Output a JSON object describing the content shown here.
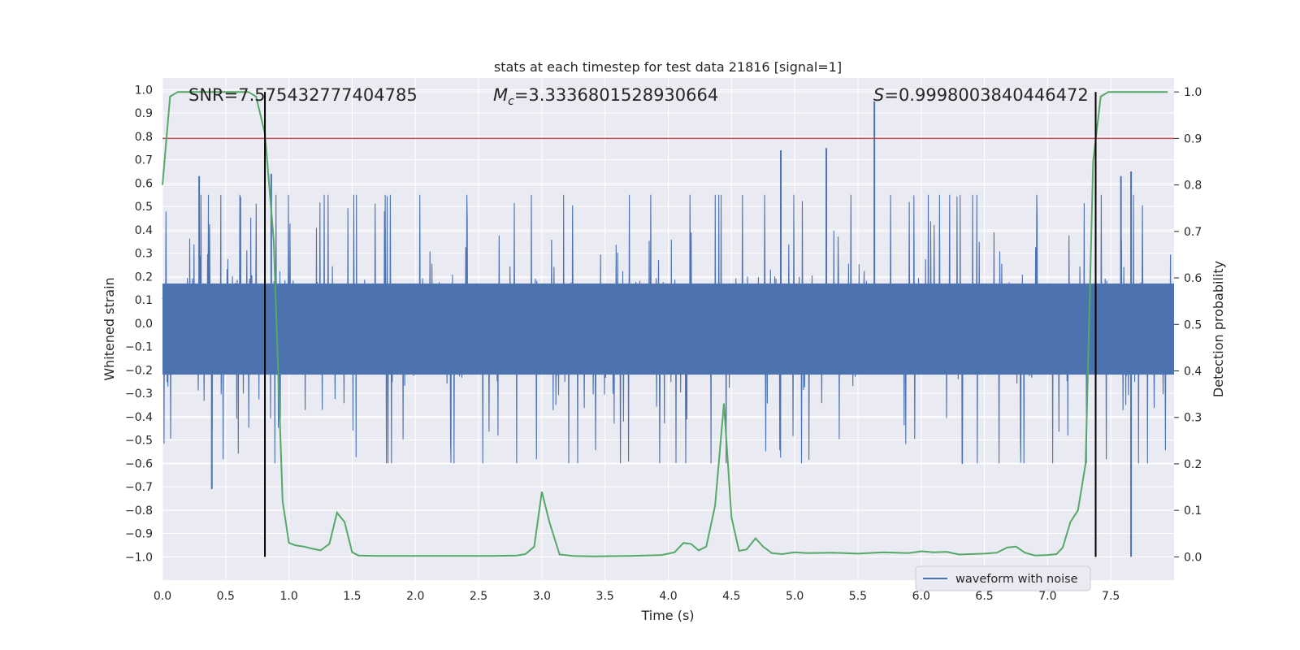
{
  "chart_data": {
    "type": "line",
    "title": "stats at each timestep for test data 21816 [signal=1]",
    "xlabel": "Time (s)",
    "ylabel_left": "Whitened strain",
    "ylabel_right": "Detection probability",
    "xlim": [
      0.0,
      8.0
    ],
    "ylim_left": [
      -1.1,
      1.05
    ],
    "ylim_right": [
      -0.05,
      1.03
    ],
    "x_ticks": [
      "0.0",
      "0.5",
      "1.0",
      "1.5",
      "2.0",
      "2.5",
      "3.0",
      "3.5",
      "4.0",
      "4.5",
      "5.0",
      "5.5",
      "6.0",
      "6.5",
      "7.0",
      "7.5"
    ],
    "y_left_ticks": [
      "1.0",
      "0.9",
      "0.8",
      "0.7",
      "0.6",
      "0.5",
      "0.4",
      "0.3",
      "0.2",
      "0.1",
      "0.0",
      "-0.1",
      "-0.2",
      "-0.3",
      "-0.4",
      "-0.5",
      "-0.6",
      "-0.7",
      "-0.8",
      "-0.9",
      "-1.0"
    ],
    "y_right_ticks": [
      "1.0",
      "0.9",
      "0.8",
      "0.7",
      "0.6",
      "0.5",
      "0.4",
      "0.3",
      "0.2",
      "0.1",
      "0.0"
    ],
    "annotations": {
      "snr": "SNR=7.575432777404785",
      "mc_symbol": "M",
      "mc_sub": "c",
      "mc_value": "=3.3336801528930664",
      "s_symbol": "S",
      "s_value": "=0.9998003840446472"
    },
    "threshold": 0.9,
    "vertical_lines_x": [
      0.81,
      7.38
    ],
    "legend": {
      "placement": "lower-right",
      "label": "waveform with noise"
    },
    "grid": true,
    "colors": {
      "background": "#eaeaf2",
      "grid": "#ffffff",
      "waveform": "#4c72b0",
      "probability": "#55a868",
      "threshold": "#c44e52",
      "marker": "#000000"
    },
    "series": [
      {
        "name": "waveform with noise",
        "axis": "left",
        "kind": "noise-envelope",
        "core_range": [
          -0.22,
          0.17
        ],
        "typical_peak": 0.36,
        "peaks": [
          {
            "x": 0.29,
            "y": 0.63
          },
          {
            "x": 0.39,
            "y": -0.71
          },
          {
            "x": 0.86,
            "y": 0.64
          },
          {
            "x": 4.89,
            "y": 0.74
          },
          {
            "x": 5.25,
            "y": 0.75
          },
          {
            "x": 5.63,
            "y": 0.95
          },
          {
            "x": 7.66,
            "y": -1.0
          },
          {
            "x": 7.58,
            "y": 0.63
          },
          {
            "x": 7.66,
            "y": 0.65
          }
        ]
      },
      {
        "name": "detection probability",
        "axis": "right",
        "x": [
          0.0,
          0.06,
          0.12,
          0.2,
          0.3,
          0.4,
          0.5,
          0.6,
          0.68,
          0.74,
          0.81,
          0.88,
          0.95,
          1.0,
          1.05,
          1.12,
          1.18,
          1.25,
          1.32,
          1.38,
          1.44,
          1.5,
          1.55,
          1.7,
          2.0,
          2.3,
          2.6,
          2.8,
          2.87,
          2.94,
          3.0,
          3.06,
          3.14,
          3.25,
          3.4,
          3.7,
          3.95,
          4.05,
          4.12,
          4.18,
          4.24,
          4.3,
          4.37,
          4.44,
          4.5,
          4.56,
          4.62,
          4.69,
          4.75,
          4.82,
          4.9,
          5.0,
          5.1,
          5.3,
          5.5,
          5.7,
          5.9,
          6.0,
          6.1,
          6.2,
          6.3,
          6.5,
          6.6,
          6.68,
          6.75,
          6.82,
          6.9,
          7.0,
          7.07,
          7.12,
          7.18,
          7.24,
          7.3,
          7.36,
          7.42,
          7.48,
          7.6,
          7.8,
          7.95
        ],
        "values": [
          0.8,
          0.99,
          1.0,
          1.0,
          1.0,
          1.0,
          1.0,
          1.0,
          1.0,
          0.99,
          0.91,
          0.68,
          0.12,
          0.03,
          0.025,
          0.022,
          0.018,
          0.014,
          0.028,
          0.095,
          0.075,
          0.01,
          0.003,
          0.002,
          0.002,
          0.002,
          0.002,
          0.003,
          0.006,
          0.022,
          0.14,
          0.075,
          0.005,
          0.002,
          0.001,
          0.002,
          0.004,
          0.01,
          0.03,
          0.028,
          0.014,
          0.022,
          0.11,
          0.33,
          0.085,
          0.013,
          0.016,
          0.04,
          0.022,
          0.008,
          0.006,
          0.01,
          0.008,
          0.009,
          0.007,
          0.01,
          0.008,
          0.012,
          0.01,
          0.011,
          0.005,
          0.007,
          0.009,
          0.02,
          0.022,
          0.009,
          0.003,
          0.004,
          0.006,
          0.02,
          0.075,
          0.1,
          0.2,
          0.85,
          0.99,
          1.0,
          1.0,
          1.0,
          1.0
        ]
      }
    ]
  }
}
